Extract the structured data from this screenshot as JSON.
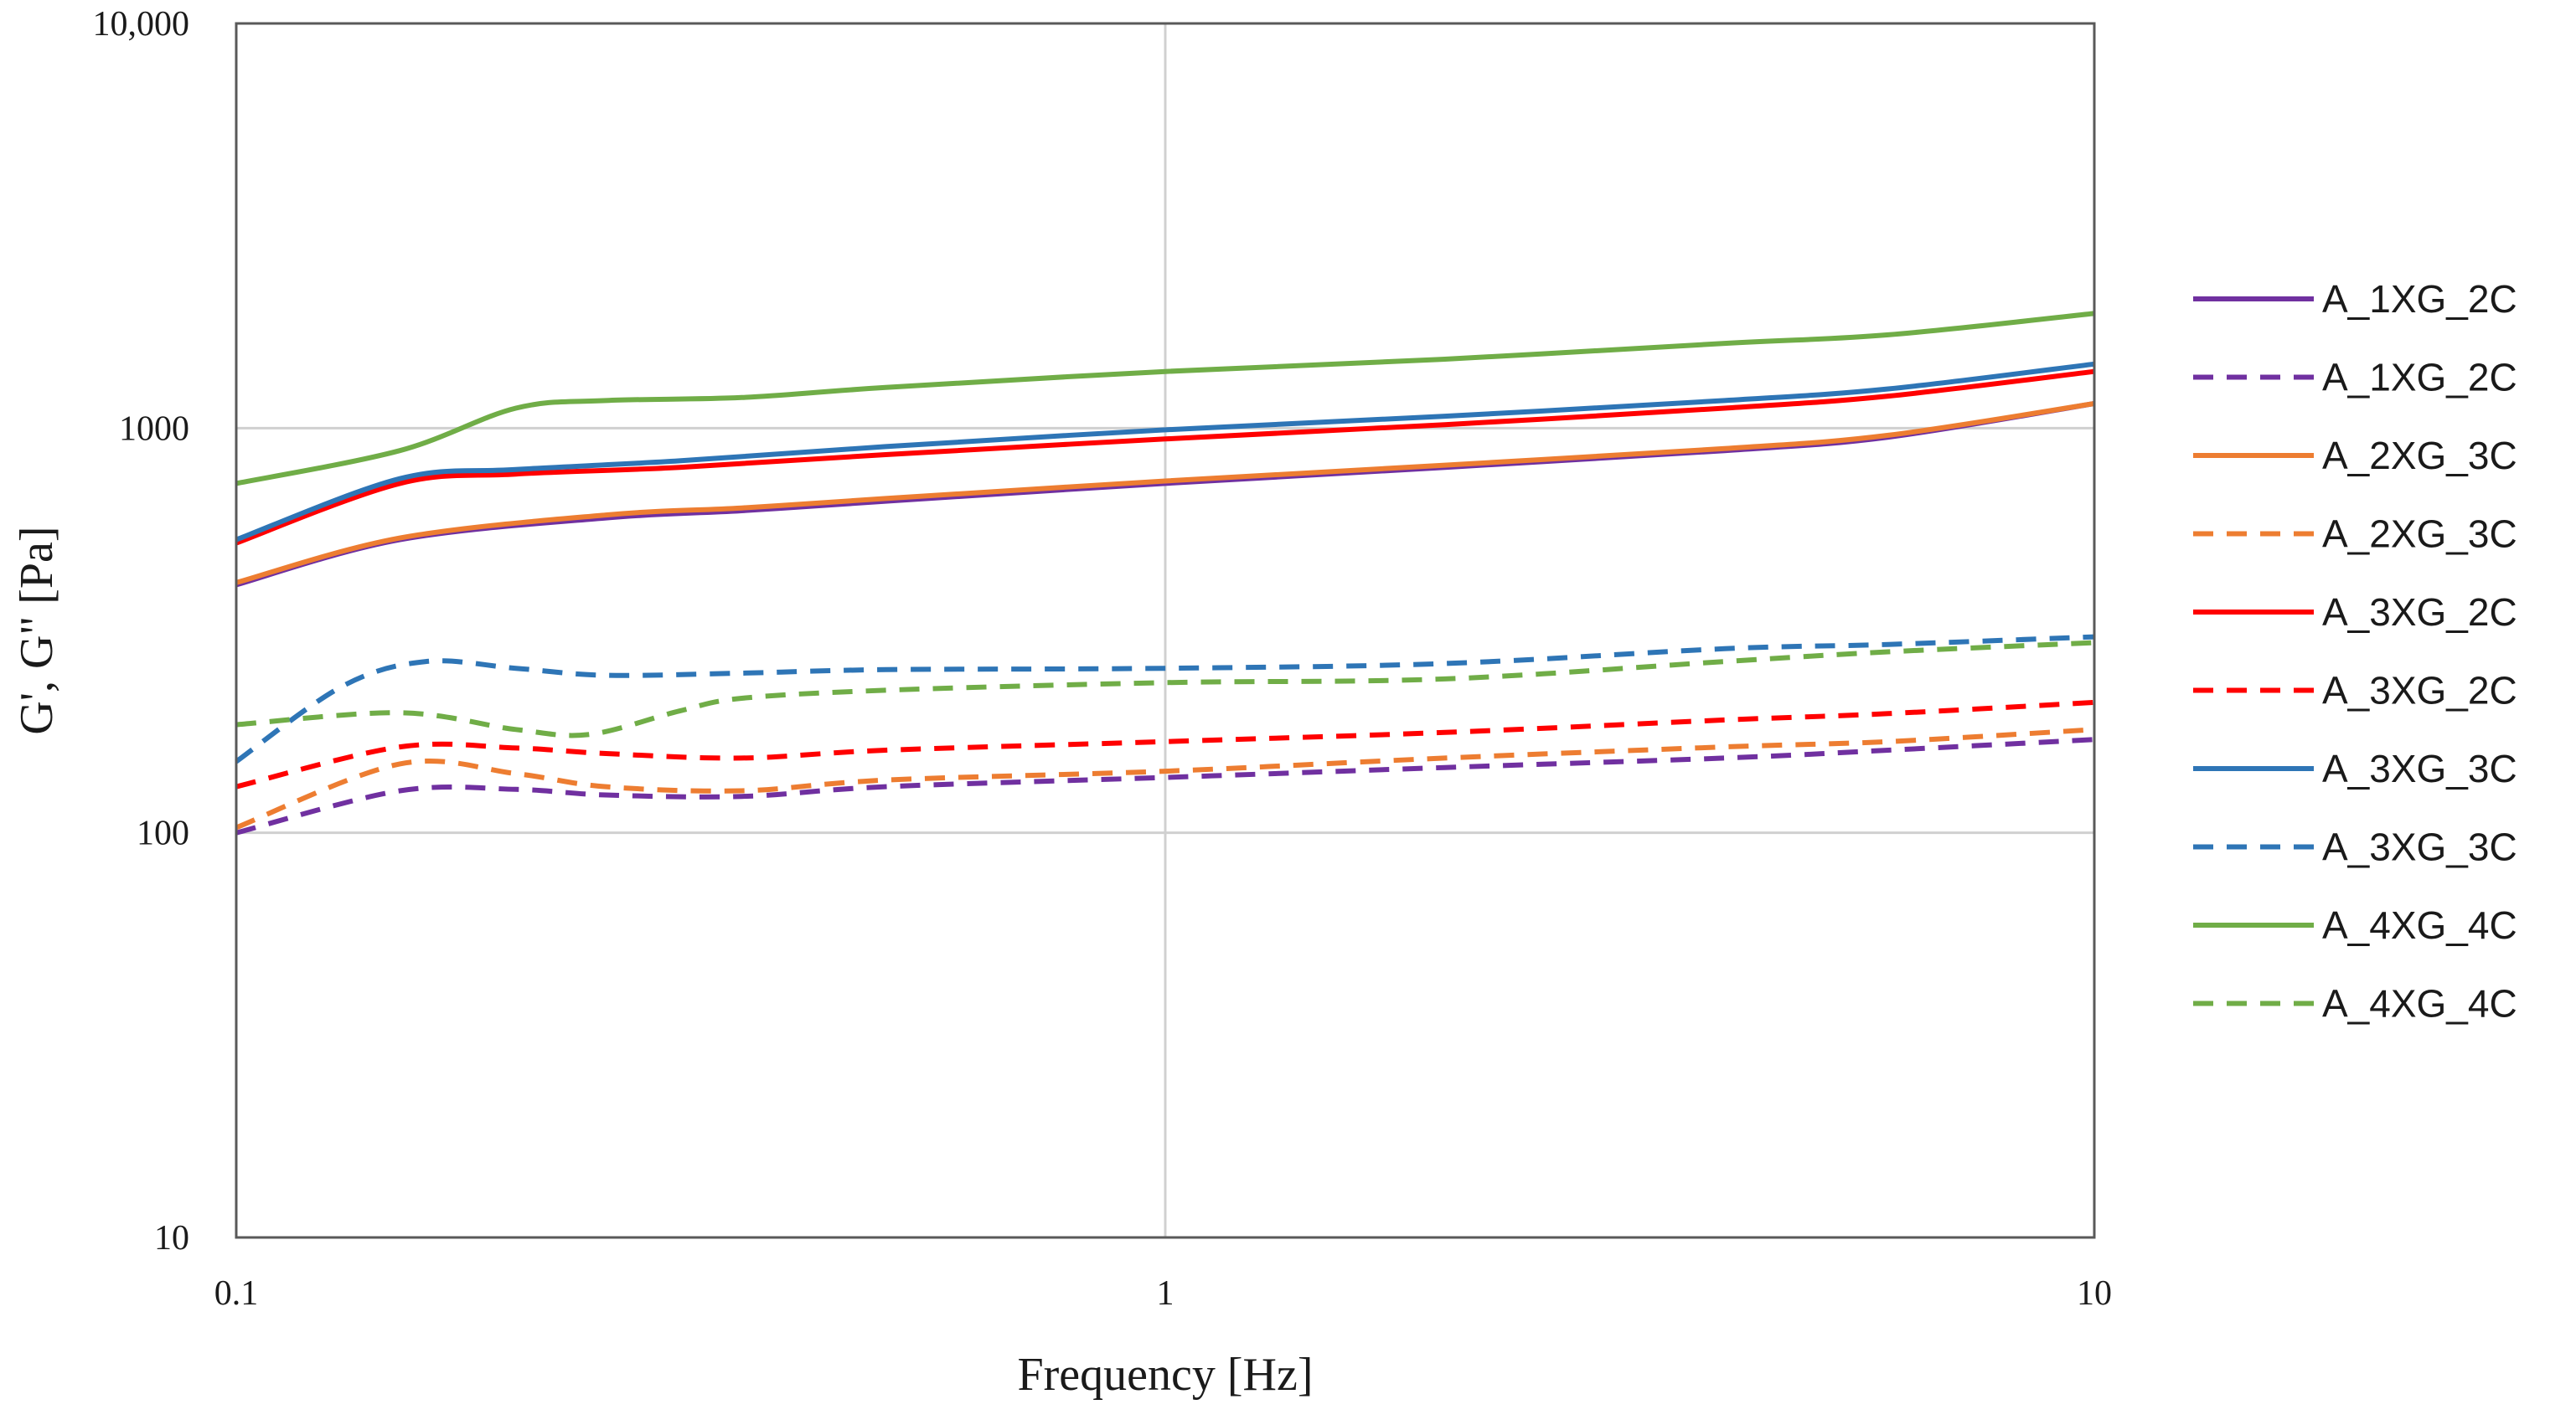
{
  "chart_data": {
    "type": "line",
    "title": "",
    "xlabel": "Frequency [Hz]",
    "ylabel": "G', G\"  [Pa]",
    "xscale": "log",
    "yscale": "log",
    "xlim": [
      0.1,
      10
    ],
    "ylim": [
      10,
      10000
    ],
    "grid": true,
    "legend_position": "right",
    "xticks": [
      {
        "value": 0.1,
        "label": "0.1"
      },
      {
        "value": 1,
        "label": "1"
      },
      {
        "value": 10,
        "label": "10"
      }
    ],
    "yticks": [
      {
        "value": 10,
        "label": "10"
      },
      {
        "value": 100,
        "label": "100"
      },
      {
        "value": 1000,
        "label": "1000"
      },
      {
        "value": 10000,
        "label": "10,000"
      }
    ],
    "series": [
      {
        "name": "A_1XG_2C",
        "color": "#7030a0",
        "dash": false,
        "x": [
          0.1,
          0.15,
          0.25,
          0.35,
          0.5,
          1,
          2,
          4,
          6,
          10
        ],
        "y": [
          410,
          530,
          600,
          625,
          660,
          730,
          800,
          880,
          950,
          1150
        ]
      },
      {
        "name": "A_1XG_2C",
        "color": "#7030a0",
        "dash": true,
        "x": [
          0.1,
          0.15,
          0.2,
          0.25,
          0.35,
          0.5,
          1,
          2,
          4,
          6,
          10
        ],
        "y": [
          100,
          127,
          128,
          124,
          123,
          130,
          137,
          145,
          153,
          160,
          170
        ]
      },
      {
        "name": "A_2XG_3C",
        "color": "#ed7d31",
        "dash": false,
        "x": [
          0.1,
          0.15,
          0.25,
          0.35,
          0.5,
          1,
          2,
          4,
          6,
          10
        ],
        "y": [
          415,
          535,
          610,
          635,
          670,
          740,
          810,
          890,
          960,
          1150
        ]
      },
      {
        "name": "A_2XG_3C",
        "color": "#ed7d31",
        "dash": true,
        "x": [
          0.1,
          0.15,
          0.2,
          0.25,
          0.35,
          0.5,
          1,
          2,
          4,
          6,
          10
        ],
        "y": [
          103,
          148,
          140,
          130,
          127,
          135,
          142,
          153,
          163,
          168,
          180
        ]
      },
      {
        "name": "A_3XG_2C",
        "color": "#ff0000",
        "dash": false,
        "x": [
          0.1,
          0.15,
          0.2,
          0.3,
          0.5,
          1,
          2,
          4,
          6,
          10
        ],
        "y": [
          520,
          730,
          770,
          800,
          860,
          940,
          1020,
          1120,
          1200,
          1380
        ]
      },
      {
        "name": "A_3XG_2C",
        "color": "#ff0000",
        "dash": true,
        "x": [
          0.1,
          0.15,
          0.2,
          0.25,
          0.35,
          0.5,
          1,
          2,
          4,
          6,
          10
        ],
        "y": [
          130,
          163,
          162,
          157,
          153,
          160,
          168,
          177,
          190,
          197,
          210
        ]
      },
      {
        "name": "A_3XG_3C",
        "color": "#2e75b6",
        "dash": false,
        "x": [
          0.1,
          0.15,
          0.2,
          0.3,
          0.5,
          1,
          2,
          4,
          6,
          10
        ],
        "y": [
          530,
          750,
          790,
          830,
          900,
          990,
          1070,
          1170,
          1250,
          1440
        ]
      },
      {
        "name": "A_3XG_3C",
        "color": "#2e75b6",
        "dash": true,
        "x": [
          0.1,
          0.13,
          0.16,
          0.2,
          0.25,
          0.35,
          0.5,
          1,
          2,
          4,
          6,
          10
        ],
        "y": [
          150,
          230,
          265,
          255,
          245,
          248,
          253,
          255,
          262,
          285,
          292,
          305
        ]
      },
      {
        "name": "A_4XG_4C",
        "color": "#70ad47",
        "dash": false,
        "x": [
          0.1,
          0.15,
          0.2,
          0.25,
          0.35,
          0.5,
          1,
          2,
          4,
          6,
          10
        ],
        "y": [
          730,
          880,
          1120,
          1170,
          1190,
          1260,
          1380,
          1480,
          1620,
          1700,
          1920
        ]
      },
      {
        "name": "A_4XG_4C",
        "color": "#70ad47",
        "dash": true,
        "x": [
          0.1,
          0.15,
          0.2,
          0.24,
          0.3,
          0.35,
          0.5,
          1,
          2,
          4,
          6,
          10
        ],
        "y": [
          185,
          198,
          180,
          175,
          200,
          215,
          225,
          235,
          240,
          265,
          280,
          295
        ]
      }
    ]
  }
}
